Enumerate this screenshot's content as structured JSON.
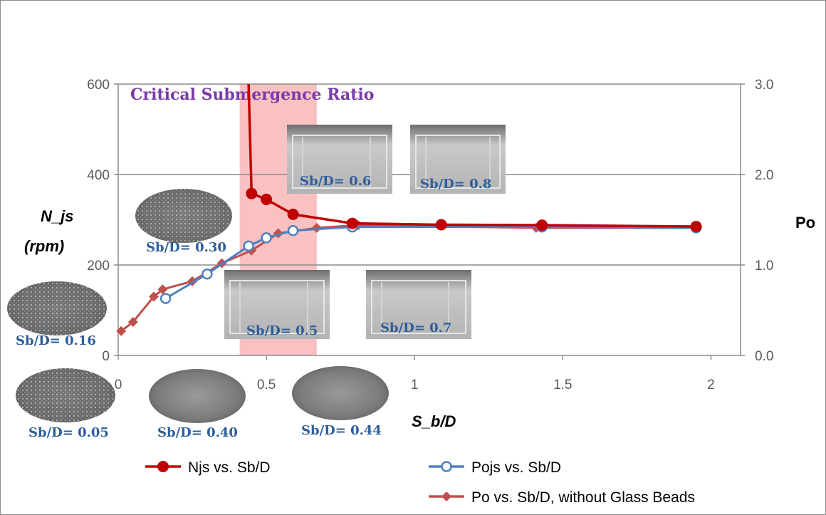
{
  "chart_data": {
    "type": "line",
    "title": "",
    "xlabel": "S_b/D",
    "ylabel": [
      "N_js",
      "(rpm)"
    ],
    "ylabel_right": "Po",
    "xlim": [
      0,
      2.1
    ],
    "ylim": [
      0,
      600
    ],
    "ylim_right": [
      0,
      3.0
    ],
    "x_ticks": [
      "0",
      "0.5",
      "1",
      "1.5",
      "2"
    ],
    "y_ticks": [
      "0",
      "200",
      "400",
      "600"
    ],
    "y_ticks_right": [
      "0.0",
      "1.0",
      "2.0",
      "3.0"
    ],
    "grid": "horizontal",
    "legend_position": "bottom",
    "shaded_region": {
      "label": "Critical Submergence Ratio",
      "x_range": [
        0.41,
        0.67
      ],
      "color": "#f9c1c1"
    },
    "series": [
      {
        "name": "Njs vs. Sb/D",
        "axis": "left",
        "marker": "filled-circle",
        "color": "#c00000",
        "x": [
          0.44,
          0.45,
          0.5,
          0.59,
          0.79,
          1.09,
          1.43,
          1.95
        ],
        "y": [
          600,
          358,
          345,
          312,
          292,
          289,
          288,
          285
        ]
      },
      {
        "name": "Pojs vs. Sb/D",
        "axis": "right",
        "marker": "open-circle",
        "color": "#4f81bd",
        "x": [
          0.16,
          0.3,
          0.44,
          0.5,
          0.59,
          0.79,
          1.43,
          1.95
        ],
        "y": [
          0.63,
          0.9,
          1.21,
          1.3,
          1.38,
          1.42,
          1.42,
          1.41
        ]
      },
      {
        "name": "Po vs. Sb/D, without Glass Beads",
        "axis": "right",
        "marker": "filled-diamond",
        "color": "#c0504d",
        "x": [
          0.01,
          0.05,
          0.12,
          0.15,
          0.25,
          0.35,
          0.45,
          0.54,
          0.67,
          0.81,
          1.41,
          1.95
        ],
        "y": [
          0.27,
          0.37,
          0.65,
          0.73,
          0.82,
          1.02,
          1.16,
          1.35,
          1.41,
          1.44,
          1.41,
          1.41
        ]
      }
    ],
    "photo_labels": [
      "Sb/D= 0.05",
      "Sb/D= 0.16",
      "Sb/D= 0.30",
      "Sb/D= 0.40",
      "Sb/D= 0.44",
      "Sb/D= 0.5",
      "Sb/D= 0.6",
      "Sb/D= 0.7",
      "Sb/D= 0.8"
    ]
  }
}
